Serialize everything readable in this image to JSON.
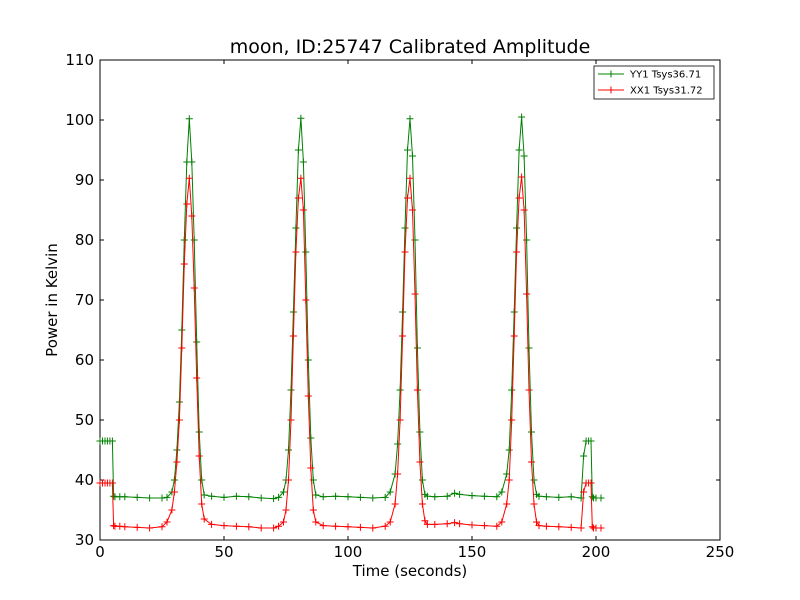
{
  "chart_data": {
    "type": "line",
    "title": "moon, ID:25747 Calibrated Amplitude",
    "xlabel": "Time (seconds)",
    "ylabel": "Power in Kelvin",
    "xlim": [
      0,
      250
    ],
    "ylim": [
      30,
      110
    ],
    "xticks": [
      0,
      50,
      100,
      150,
      200,
      250
    ],
    "yticks": [
      30,
      40,
      50,
      60,
      70,
      80,
      90,
      100,
      110
    ],
    "grid": false,
    "legend_position": "top-right",
    "marker": "+",
    "series": [
      {
        "name": "YY1 Tsys36.71",
        "color": "#008000",
        "x": [
          0,
          1,
          2,
          3,
          4,
          5,
          5.5,
          6,
          8,
          10,
          15,
          20,
          25,
          27,
          29,
          30,
          31,
          32,
          33,
          34,
          35,
          36,
          37,
          38,
          39,
          40,
          41,
          42,
          45,
          50,
          55,
          60,
          65,
          70,
          72,
          74,
          75,
          76,
          77,
          78,
          79,
          80,
          81,
          82,
          83,
          84,
          85,
          86,
          87,
          90,
          95,
          100,
          105,
          110,
          115,
          117,
          119,
          120,
          121,
          122,
          123,
          124,
          125,
          126,
          127,
          128,
          129,
          130,
          131,
          132,
          135,
          140,
          143,
          145,
          150,
          155,
          160,
          162,
          164,
          165,
          166,
          167,
          168,
          169,
          170,
          171,
          172,
          173,
          174,
          175,
          176,
          177,
          180,
          185,
          190,
          194,
          195,
          196,
          197,
          198,
          198.5,
          199,
          200,
          202
        ],
        "y": [
          46.5,
          46.5,
          46.5,
          46.5,
          46.5,
          46.5,
          37.3,
          37.2,
          37.2,
          37.2,
          37.1,
          37.0,
          37.0,
          37.1,
          38.0,
          40.0,
          45.0,
          53.0,
          65.0,
          80.0,
          93.0,
          100.2,
          93.0,
          80.0,
          63.0,
          48.0,
          40.0,
          37.5,
          37.3,
          37.1,
          37.3,
          37.2,
          37.0,
          36.9,
          37.1,
          38.0,
          40.0,
          45.0,
          55.0,
          68.0,
          82.0,
          95.0,
          100.3,
          93.0,
          78.0,
          60.0,
          47.0,
          40.0,
          37.5,
          37.2,
          37.3,
          37.2,
          37.1,
          37.0,
          37.1,
          38.0,
          41.0,
          46.0,
          55.0,
          68.0,
          82.0,
          95.0,
          100.2,
          94.0,
          80.0,
          62.0,
          48.0,
          40.0,
          37.6,
          37.3,
          37.2,
          37.3,
          37.8,
          37.6,
          37.4,
          37.3,
          37.2,
          38.0,
          41.0,
          45.0,
          55.0,
          68.0,
          82.0,
          95.0,
          100.5,
          94.0,
          80.0,
          62.0,
          48.0,
          40.0,
          37.6,
          37.3,
          37.2,
          37.1,
          37.2,
          37.0,
          44.0,
          46.5,
          46.5,
          46.5,
          37.2,
          37.0,
          37.0,
          37.0
        ]
      },
      {
        "name": "XX1 Tsys31.72",
        "color": "#ff0000",
        "x": [
          0,
          1,
          2,
          3,
          4,
          5,
          5.5,
          6,
          8,
          10,
          15,
          20,
          25,
          27,
          29,
          30,
          31,
          32,
          33,
          34,
          35,
          36,
          37,
          38,
          39,
          40,
          41,
          42,
          45,
          50,
          55,
          60,
          65,
          70,
          72,
          74,
          75,
          76,
          77,
          78,
          79,
          80,
          81,
          82,
          83,
          84,
          85,
          86,
          87,
          90,
          95,
          100,
          105,
          110,
          115,
          117,
          119,
          120,
          121,
          122,
          123,
          124,
          125,
          126,
          127,
          128,
          129,
          130,
          131,
          132,
          135,
          140,
          143,
          145,
          150,
          155,
          160,
          162,
          164,
          165,
          166,
          167,
          168,
          169,
          170,
          171,
          172,
          173,
          174,
          175,
          176,
          177,
          180,
          185,
          190,
          194,
          195,
          196,
          197,
          198,
          198.5,
          199,
          200,
          202
        ],
        "y": [
          39.5,
          39.5,
          39.5,
          39.5,
          39.5,
          39.5,
          32.4,
          32.3,
          32.3,
          32.2,
          32.1,
          32.0,
          32.2,
          33.0,
          35.0,
          38.0,
          43.0,
          50.0,
          62.0,
          76.0,
          86.0,
          90.3,
          84.0,
          72.0,
          57.0,
          44.0,
          36.0,
          33.5,
          32.6,
          32.4,
          32.3,
          32.2,
          32.0,
          32.0,
          32.3,
          33.0,
          35.0,
          40.0,
          50.0,
          64.0,
          78.0,
          87.0,
          90.3,
          85.0,
          70.0,
          54.0,
          42.0,
          35.0,
          33.0,
          32.4,
          32.3,
          32.2,
          32.1,
          32.0,
          32.3,
          33.0,
          36.0,
          41.0,
          50.0,
          64.0,
          78.0,
          87.0,
          90.3,
          85.0,
          71.0,
          55.0,
          43.0,
          36.0,
          33.2,
          32.6,
          32.6,
          32.7,
          32.9,
          32.7,
          32.5,
          32.4,
          32.3,
          33.0,
          36.0,
          40.0,
          50.0,
          64.0,
          78.0,
          87.0,
          90.5,
          85.0,
          71.0,
          55.0,
          43.0,
          36.0,
          33.0,
          32.4,
          32.3,
          32.2,
          32.1,
          32.0,
          38.0,
          39.5,
          39.5,
          39.5,
          32.2,
          32.0,
          32.0,
          32.0
        ]
      }
    ]
  }
}
